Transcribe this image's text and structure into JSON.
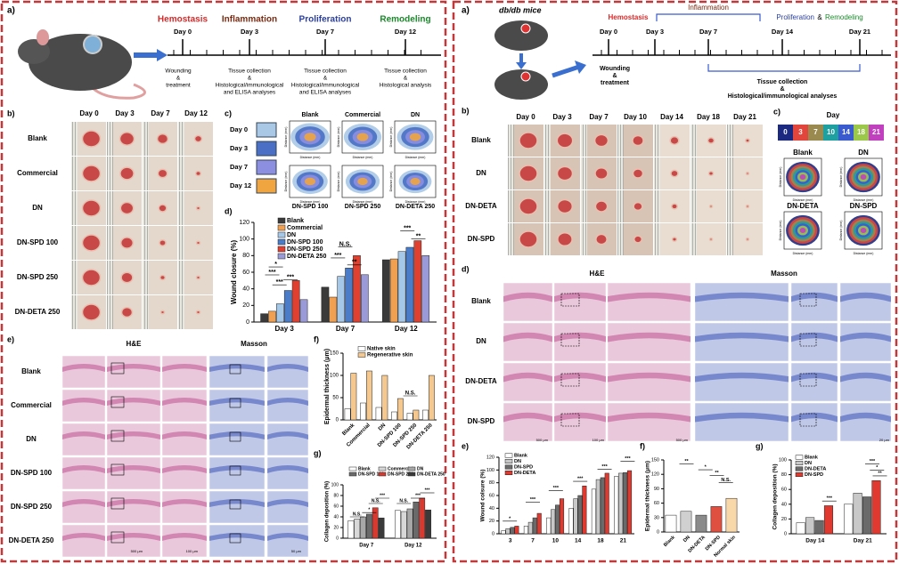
{
  "left": {
    "a": {
      "label": "a)",
      "phases": [
        {
          "name": "Hemostasis",
          "color": "#d42a2a"
        },
        {
          "name": "Inflammation",
          "color": "#7a2a10"
        },
        {
          "name": "Proliferation",
          "color": "#2a3fa0"
        },
        {
          "name": "Remodeling",
          "color": "#1a8a2a"
        }
      ],
      "days": [
        "Day 0",
        "Day 3",
        "Day 7",
        "Day 12"
      ],
      "notes": [
        [
          "Wounding",
          "&",
          "treatment"
        ],
        [
          "Tissue collection",
          "&",
          "Histological/immunological",
          "and ELISA analyses"
        ],
        [
          "Tissue collection",
          "&",
          "Histological/immunological",
          "and ELISA analyses"
        ],
        [
          "Tissue collection",
          "&",
          "Histological analysis"
        ]
      ]
    },
    "b": {
      "label": "b)",
      "columns": [
        "Day 0",
        "Day 3",
        "Day 7",
        "Day 12"
      ],
      "rows": [
        "Blank",
        "Commercial",
        "DN",
        "DN-SPD 100",
        "DN-SPD 250",
        "DN-DETA 250"
      ]
    },
    "c": {
      "label": "c)",
      "days": [
        {
          "name": "Day 0",
          "color": "#a9c8e6"
        },
        {
          "name": "Day 3",
          "color": "#4a6fc4"
        },
        {
          "name": "Day 7",
          "color": "#8c8ee0"
        },
        {
          "name": "Day 12",
          "color": "#f0a540"
        }
      ],
      "groups": [
        "Blank",
        "Commercial",
        "DN",
        "DN-SPD 100",
        "DN-SPD 250",
        "DN-DETA 250"
      ],
      "axis_label": "Distance (mm)"
    },
    "d": {
      "label": "d)",
      "chart": {
        "type": "bar",
        "y_label": "Wound closure (%)",
        "categories": [
          "Day 3",
          "Day 7",
          "Day 12"
        ],
        "series": [
          {
            "name": "Blank",
            "color": "#3a3a3a",
            "values": [
              10,
              42,
              75
            ]
          },
          {
            "name": "Commercial",
            "color": "#f0a050",
            "values": [
              13,
              30,
              76
            ]
          },
          {
            "name": "DN",
            "color": "#a6c8e8",
            "values": [
              22,
              55,
              85
            ]
          },
          {
            "name": "DN-SPD 100",
            "color": "#4a7cc8",
            "values": [
              38,
              65,
              90
            ]
          },
          {
            "name": "DN-SPD 250",
            "color": "#e04030",
            "values": [
              50,
              80,
              98
            ]
          },
          {
            "name": "DN-DETA 250",
            "color": "#9a9ad8",
            "values": [
              27,
              57,
              80
            ]
          }
        ],
        "ylim": [
          0,
          120
        ],
        "yticks": [
          0,
          20,
          40,
          60,
          80,
          100,
          120
        ],
        "legend": "upper left",
        "annotations": [
          "*",
          "***",
          "***",
          "***",
          "N.S.",
          "***",
          "**",
          "***",
          "**"
        ]
      }
    },
    "e": {
      "label": "e)",
      "stains": [
        "H&E",
        "Masson"
      ],
      "rows": [
        "Blank",
        "Commercial",
        "DN",
        "DN-SPD 100",
        "DN-SPD 250",
        "DN-DETA 250"
      ],
      "scale_bars": [
        "500 μm",
        "100 μm",
        "50 μm"
      ]
    },
    "f": {
      "label": "f)",
      "chart": {
        "type": "bar",
        "y_label": "Epidermal thickness (μm)",
        "categories": [
          "Blank",
          "Commercial",
          "DN",
          "DN-SPD 100",
          "DN-SPD 250",
          "DN-DETA 250"
        ],
        "series": [
          {
            "name": "Native skin",
            "color": "#ffffff",
            "values": [
              25,
              38,
              28,
              18,
              15,
              22
            ]
          },
          {
            "name": "Regenerative skin",
            "color": "#f5c890",
            "values": [
              105,
              110,
              100,
              48,
              22,
              100
            ]
          }
        ],
        "ylim": [
          0,
          150
        ],
        "yticks": [
          0,
          50,
          100,
          150
        ],
        "legend": "upper center",
        "annotations": [
          "N.S."
        ]
      }
    },
    "g": {
      "label": "g)",
      "chart": {
        "type": "bar",
        "y_label": "Collagen deposition (%)",
        "categories": [
          "Day 7",
          "Day 12"
        ],
        "series": [
          {
            "name": "Blank",
            "color": "#ffffff",
            "values": [
              33,
              52
            ]
          },
          {
            "name": "Commercial",
            "color": "#d8d8d8",
            "values": [
              36,
              50
            ]
          },
          {
            "name": "DN",
            "color": "#a8a8a8",
            "values": [
              40,
              55
            ]
          },
          {
            "name": "DN-SPD 100",
            "color": "#6a6a6a",
            "values": [
              45,
              68
            ]
          },
          {
            "name": "DN-SPD 250",
            "color": "#d83a30",
            "values": [
              57,
              75
            ]
          },
          {
            "name": "DN-DETA 250",
            "color": "#3a3a3a",
            "values": [
              38,
              53
            ]
          }
        ],
        "ylim": [
          0,
          100
        ],
        "yticks": [
          0,
          20,
          40,
          60,
          80,
          100
        ],
        "legend": "upper left",
        "annotations": [
          "N.S.",
          "*",
          "N.S.",
          "***",
          "N.S.",
          "***",
          "***"
        ]
      }
    }
  },
  "right": {
    "a": {
      "label": "a)",
      "subject": "db/db mice",
      "phases": [
        {
          "name": "Hemostasis",
          "color": "#d42a2a"
        },
        {
          "name": "Inflammation",
          "color": "#7a2a10"
        },
        {
          "name": "Proliferation",
          "color": "#2a3fa0"
        },
        {
          "name": "Remodeling",
          "color": "#1a8a2a"
        }
      ],
      "connector": "&",
      "days": [
        "Day 0",
        "Day 3",
        "Day 7",
        "Day 14",
        "Day 21"
      ],
      "notes": [
        [
          "Wounding",
          "&",
          "treatment"
        ],
        [
          "Tissue collection",
          "&",
          "Histological/immunological analyses"
        ]
      ]
    },
    "b": {
      "label": "b)",
      "columns": [
        "Day 0",
        "Day 3",
        "Day 7",
        "Day 10",
        "Day 14",
        "Day 18",
        "Day 21"
      ],
      "rows": [
        "Blank",
        "DN",
        "DN-DETA",
        "DN-SPD"
      ]
    },
    "c": {
      "label": "c)",
      "title": "Day",
      "days": [
        {
          "name": "0",
          "color": "#1b2a80"
        },
        {
          "name": "3",
          "color": "#e2453c"
        },
        {
          "name": "7",
          "color": "#9a8a50"
        },
        {
          "name": "10",
          "color": "#1ea0a0"
        },
        {
          "name": "14",
          "color": "#3a5ad0"
        },
        {
          "name": "18",
          "color": "#9cc84a"
        },
        {
          "name": "21",
          "color": "#c040c0"
        }
      ],
      "groups": [
        "Blank",
        "DN",
        "DN-DETA",
        "DN-SPD"
      ],
      "axis_label": "Distance (mm)"
    },
    "d": {
      "label": "d)",
      "stains": [
        "H&E",
        "Masson"
      ],
      "rows": [
        "Blank",
        "DN",
        "DN-DETA",
        "DN-SPD"
      ],
      "scale_bars": [
        "500 μm",
        "100 μm",
        "500 μm",
        "20 μm"
      ]
    },
    "e": {
      "label": "e)",
      "chart": {
        "type": "bar",
        "y_label": "Wound colsure (%)",
        "categories": [
          "3",
          "7",
          "10",
          "14",
          "18",
          "21"
        ],
        "series": [
          {
            "name": "Blank",
            "color": "#ffffff",
            "values": [
              5,
              12,
              25,
              40,
              70,
              90
            ]
          },
          {
            "name": "DN",
            "color": "#c8c8c8",
            "values": [
              8,
              18,
              38,
              55,
              85,
              95
            ]
          },
          {
            "name": "DN-SPD",
            "color": "#6a6a6a",
            "values": [
              10,
              25,
              45,
              60,
              88,
              96
            ]
          },
          {
            "name": "DN-DETA",
            "color": "#e03a30",
            "values": [
              12,
              32,
              55,
              75,
              95,
              99
            ]
          }
        ],
        "ylim": [
          0,
          120
        ],
        "yticks": [
          0,
          20,
          40,
          60,
          80,
          100,
          120
        ],
        "legend": "upper left",
        "annotations": [
          "*",
          "***",
          "***",
          "***",
          "***",
          "***"
        ]
      }
    },
    "f": {
      "label": "f)",
      "chart": {
        "type": "bar",
        "y_label": "Epidermal thickness (μm)",
        "categories": [
          "Blank",
          "DN",
          "DN-DETA",
          "DN-SPD",
          "Normal skin"
        ],
        "values": [
          35,
          43,
          35,
          53,
          70
        ],
        "colors": [
          "#ffffff",
          "#d0d0d0",
          "#8a8a8a",
          "#e05040",
          "#f8d8a8"
        ],
        "ylim": [
          0,
          150
        ],
        "yticks": [
          0,
          30,
          60,
          90,
          120,
          150
        ],
        "annotations": [
          "**",
          "*",
          "**",
          "N.S."
        ]
      }
    },
    "g": {
      "label": "g)",
      "chart": {
        "type": "bar",
        "y_label": "Collagen deposition (%)",
        "categories": [
          "Day 14",
          "Day 21"
        ],
        "series": [
          {
            "name": "Blank",
            "color": "#ffffff",
            "values": [
              15,
              40
            ]
          },
          {
            "name": "DN",
            "color": "#c8c8c8",
            "values": [
              22,
              55
            ]
          },
          {
            "name": "DN-DETA",
            "color": "#6a6a6a",
            "values": [
              18,
              50
            ]
          },
          {
            "name": "DN-SPD",
            "color": "#e03a30",
            "values": [
              38,
              72
            ]
          }
        ],
        "ylim": [
          0,
          100
        ],
        "yticks": [
          0,
          20,
          40,
          60,
          80,
          100
        ],
        "legend": "upper left",
        "annotations": [
          "***",
          "***",
          "*",
          "**"
        ]
      }
    }
  }
}
